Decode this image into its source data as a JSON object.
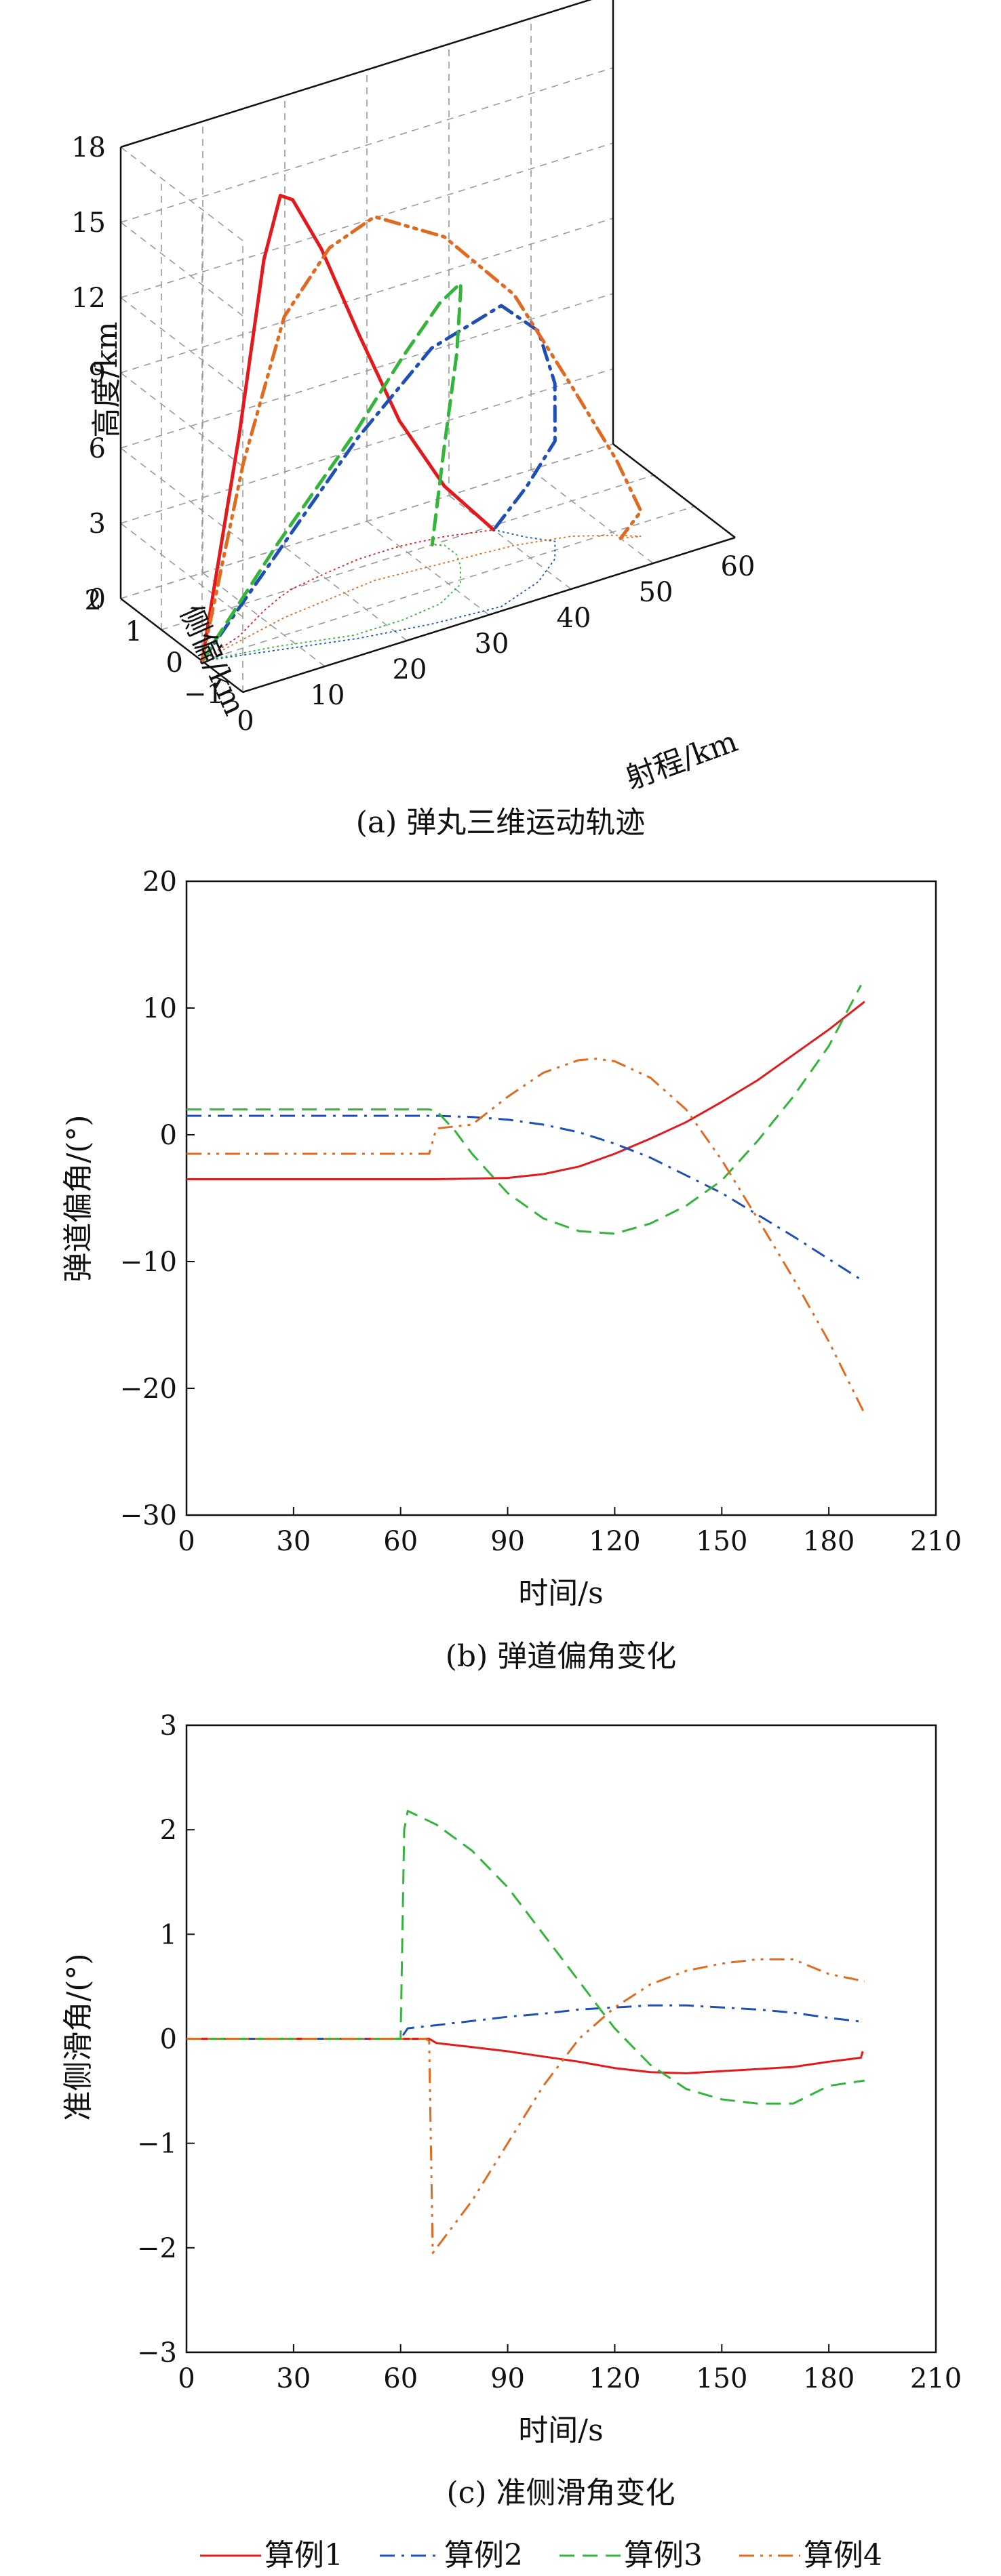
{
  "legend": [
    {
      "label": "算例1",
      "color": "#e31a1c",
      "dash": "solid"
    },
    {
      "label": "算例2",
      "color": "#1f4fb4",
      "dash": "dashdot"
    },
    {
      "label": "算例3",
      "color": "#33b43a",
      "dash": "dashed"
    },
    {
      "label": "算例4",
      "color": "#e06a20",
      "dash": "dashdotdot"
    }
  ],
  "chart_data": [
    {
      "type": "line3d",
      "caption": "(a) 弹丸三维运动轨迹",
      "xlabel": "射程/km",
      "ylabel": "侧偏/km",
      "zlabel": "高度/km",
      "xticks": [
        "0",
        "10",
        "20",
        "30",
        "40",
        "50",
        "60"
      ],
      "yticks": [
        "−1",
        "0",
        "1",
        "2"
      ],
      "zticks": [
        "0",
        "3",
        "6",
        "9",
        "12",
        "15",
        "18"
      ],
      "xlim": [
        0,
        60
      ],
      "ylim": [
        -1,
        2
      ],
      "zlim": [
        0,
        18
      ],
      "grid": true,
      "series": [
        {
          "name": "算例1",
          "x": [
            0,
            6,
            11,
            14,
            16,
            20,
            25,
            30,
            35,
            40
          ],
          "y": [
            0,
            0.3,
            0.7,
            0.9,
            1.0,
            1.1,
            1.2,
            1.2,
            1.1,
            0.9
          ],
          "z": [
            0,
            8,
            14,
            16,
            15.5,
            13,
            9,
            5,
            2,
            0
          ]
        },
        {
          "name": "算例2",
          "x": [
            0,
            8,
            16,
            24,
            32,
            38,
            42,
            44,
            42,
            40
          ],
          "y": [
            0,
            -0.3,
            -0.6,
            -0.8,
            -0.9,
            -0.6,
            -0.2,
            0.2,
            0.5,
            0.9
          ],
          "z": [
            0,
            4,
            8,
            11,
            12,
            10,
            7,
            4,
            2,
            0
          ]
        },
        {
          "name": "算例3",
          "x": [
            0,
            8,
            16,
            22,
            27,
            31,
            33,
            34,
            34,
            33
          ],
          "y": [
            0,
            -0.2,
            -0.5,
            -0.5,
            -0.4,
            -0.1,
            0.3,
            0.6,
            0.9,
            1.0
          ],
          "z": [
            0,
            4,
            8,
            10.5,
            12,
            12,
            11,
            8,
            4,
            0
          ]
        },
        {
          "name": "算例4",
          "x": [
            0,
            6,
            12,
            18,
            24,
            32,
            40,
            46,
            50,
            52,
            50
          ],
          "y": [
            0,
            0.2,
            0.4,
            0.5,
            0.6,
            0.5,
            0.4,
            0.2,
            -0.1,
            -0.3,
            -0.2
          ],
          "z": [
            0,
            7,
            12,
            14,
            14.5,
            13,
            10,
            6,
            3,
            1,
            0
          ]
        }
      ]
    },
    {
      "type": "line",
      "caption": "(b) 弹道偏角变化",
      "xlabel": "时间/s",
      "ylabel": "弹道偏角/(°)",
      "xticks": [
        "0",
        "30",
        "60",
        "90",
        "120",
        "150",
        "180",
        "210"
      ],
      "yticks": [
        "20",
        "10",
        "0",
        "−10",
        "−20",
        "−30"
      ],
      "xlim": [
        0,
        210
      ],
      "ylim": [
        -30,
        20
      ],
      "grid": false,
      "series": [
        {
          "name": "算例1",
          "x": [
            0,
            70,
            90,
            100,
            110,
            120,
            130,
            140,
            150,
            160,
            170,
            180,
            190
          ],
          "y": [
            -3.5,
            -3.5,
            -3.4,
            -3.1,
            -2.5,
            -1.5,
            -0.3,
            1.0,
            2.6,
            4.3,
            6.3,
            8.3,
            10.5
          ]
        },
        {
          "name": "算例2",
          "x": [
            0,
            70,
            80,
            90,
            100,
            110,
            120,
            130,
            140,
            150,
            160,
            170,
            180,
            190
          ],
          "y": [
            1.5,
            1.5,
            1.4,
            1.2,
            0.8,
            0.2,
            -0.7,
            -1.8,
            -3.2,
            -4.6,
            -6.3,
            -8.0,
            -9.8,
            -11.6
          ]
        },
        {
          "name": "算例3",
          "x": [
            0,
            68,
            70,
            75,
            80,
            90,
            100,
            110,
            120,
            130,
            140,
            150,
            160,
            170,
            180,
            189
          ],
          "y": [
            2.0,
            2.0,
            1.9,
            0.4,
            -1.5,
            -4.6,
            -6.6,
            -7.6,
            -7.8,
            -7.0,
            -5.6,
            -3.6,
            -0.5,
            3.0,
            7.0,
            11.8
          ]
        },
        {
          "name": "算例4",
          "x": [
            0,
            60,
            68,
            70,
            80,
            90,
            100,
            110,
            115,
            120,
            130,
            140,
            150,
            160,
            170,
            180,
            190
          ],
          "y": [
            -1.5,
            -1.5,
            -1.5,
            0.5,
            0.8,
            3.0,
            4.9,
            5.9,
            6.0,
            5.8,
            4.5,
            2.0,
            -2.0,
            -6.6,
            -11.3,
            -16.3,
            -22.0
          ]
        }
      ]
    },
    {
      "type": "line",
      "caption": "(c) 准侧滑角变化",
      "xlabel": "时间/s",
      "ylabel": "准侧滑角/(°)",
      "xticks": [
        "0",
        "30",
        "60",
        "90",
        "120",
        "150",
        "180",
        "210"
      ],
      "yticks": [
        "3",
        "2",
        "1",
        "0",
        "−1",
        "−2",
        "−3"
      ],
      "xlim": [
        0,
        210
      ],
      "ylim": [
        -3,
        3
      ],
      "grid": false,
      "series": [
        {
          "name": "算例1",
          "x": [
            0,
            68,
            70,
            80,
            90,
            100,
            110,
            120,
            130,
            140,
            150,
            160,
            170,
            180,
            187,
            189,
            189.5
          ],
          "y": [
            0,
            0,
            -0.04,
            -0.08,
            -0.12,
            -0.17,
            -0.22,
            -0.28,
            -0.32,
            -0.33,
            -0.31,
            -0.29,
            -0.27,
            -0.22,
            -0.19,
            -0.18,
            -0.12
          ]
        },
        {
          "name": "算例2",
          "x": [
            0,
            60,
            62,
            70,
            80,
            90,
            100,
            110,
            120,
            130,
            140,
            150,
            160,
            170,
            180,
            190
          ],
          "y": [
            0,
            0,
            0.1,
            0.13,
            0.17,
            0.21,
            0.24,
            0.28,
            0.3,
            0.32,
            0.32,
            0.3,
            0.28,
            0.25,
            0.2,
            0.16
          ]
        },
        {
          "name": "算例3",
          "x": [
            0,
            60,
            61,
            62,
            70,
            80,
            90,
            100,
            110,
            120,
            130,
            140,
            150,
            160,
            170,
            180,
            190
          ],
          "y": [
            0,
            0,
            2.0,
            2.18,
            2.05,
            1.8,
            1.45,
            1.0,
            0.55,
            0.1,
            -0.25,
            -0.48,
            -0.58,
            -0.62,
            -0.62,
            -0.45,
            -0.4
          ]
        },
        {
          "name": "算例4",
          "x": [
            0,
            67,
            68,
            69,
            80,
            90,
            100,
            110,
            120,
            130,
            140,
            150,
            160,
            170,
            180,
            190
          ],
          "y": [
            0,
            0,
            -0.02,
            -2.05,
            -1.55,
            -1.0,
            -0.45,
            0.0,
            0.3,
            0.52,
            0.65,
            0.72,
            0.76,
            0.76,
            0.62,
            0.55
          ]
        }
      ]
    }
  ]
}
